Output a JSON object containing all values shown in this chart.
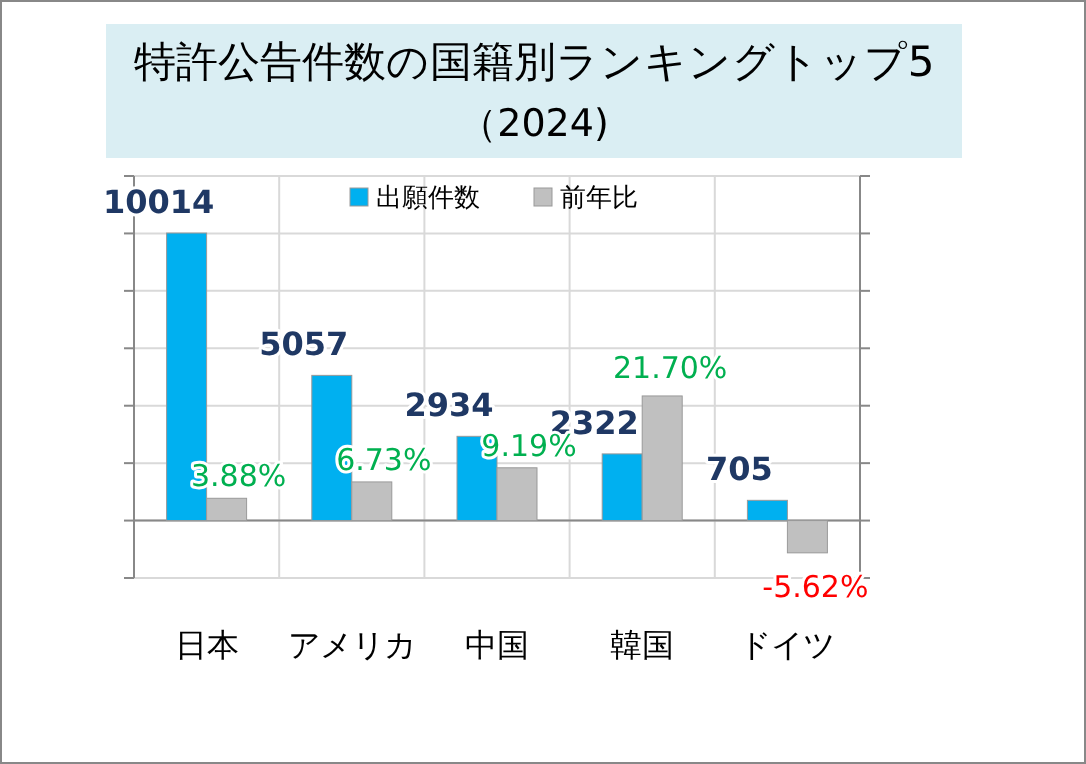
{
  "chart_data": {
    "type": "bar",
    "title": "特許公告件数の国籍別ランキングトップ5",
    "subtitle": "（2024)",
    "categories": [
      "日本",
      "アメリカ",
      "中国",
      "韓国",
      "ドイツ"
    ],
    "series": [
      {
        "name": "出願件数",
        "color": "#00b0f0",
        "values": [
          10014,
          5057,
          2934,
          2322,
          705
        ],
        "value_labels": [
          "10014",
          "5057",
          "2934",
          "2322",
          "705"
        ]
      },
      {
        "name": "前年比",
        "color": "#c0c0c0",
        "axis": "y2",
        "values": [
          3.88,
          6.73,
          9.19,
          21.7,
          -5.62
        ],
        "value_labels": [
          "3.88%",
          "6.73%",
          "9.19%",
          "21.70%",
          "-5.62%"
        ]
      }
    ],
    "ylim": [
      -2000,
      12000
    ],
    "yticks": [
      {
        "value": -2000,
        "label": null
      },
      {
        "value": 0,
        "label": null
      },
      {
        "value": 2000,
        "label": null
      },
      {
        "value": 4000,
        "label": null
      },
      {
        "value": 6000,
        "label": null
      },
      {
        "value": 8000,
        "label": null
      },
      {
        "value": 10000,
        "label": null
      },
      {
        "value": 12000,
        "label": null
      }
    ],
    "y2lim": [
      -10,
      60
    ],
    "y2ticks": [
      {
        "value": -10,
        "label": null
      },
      {
        "value": 0,
        "label": null
      },
      {
        "value": 10,
        "label": null
      },
      {
        "value": 20,
        "label": null
      },
      {
        "value": 30,
        "label": null
      },
      {
        "value": 40,
        "label": null
      },
      {
        "value": 50,
        "label": null
      },
      {
        "value": 60,
        "label": null
      }
    ],
    "tick_labels": "x",
    "grid": true,
    "legend": "top"
  }
}
